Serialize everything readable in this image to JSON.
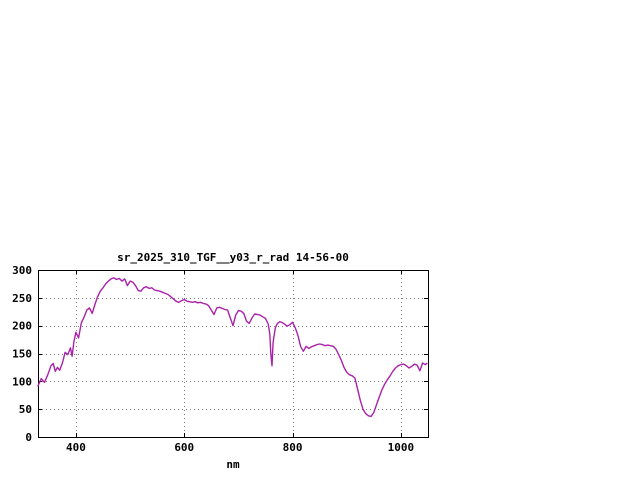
{
  "window": {
    "background_color": "#ffffff"
  },
  "chart_data": {
    "type": "line",
    "title": "sr_2025_310_TGF__y03_r_rad 14-56-00",
    "xlabel": "nm",
    "ylabel": "",
    "xlim": [
      330,
      1050
    ],
    "ylim": [
      0,
      300
    ],
    "x_ticks": [
      400,
      600,
      800,
      1000
    ],
    "y_ticks": [
      0,
      50,
      100,
      150,
      200,
      250,
      300
    ],
    "grid": true,
    "legend_position": "none",
    "line_color": "#aa22aa",
    "series": [
      {
        "name": "sr_2025_310_TGF__y03_r_rad",
        "x": [
          330,
          336,
          342,
          348,
          354,
          358,
          362,
          366,
          370,
          375,
          380,
          385,
          390,
          393,
          396,
          400,
          405,
          410,
          415,
          420,
          425,
          430,
          435,
          440,
          445,
          450,
          455,
          460,
          465,
          470,
          475,
          480,
          485,
          490,
          495,
          500,
          505,
          510,
          515,
          520,
          525,
          530,
          535,
          540,
          545,
          550,
          555,
          560,
          565,
          570,
          575,
          580,
          585,
          590,
          595,
          600,
          605,
          610,
          615,
          620,
          625,
          630,
          635,
          640,
          645,
          650,
          655,
          660,
          665,
          670,
          675,
          680,
          685,
          690,
          695,
          700,
          705,
          710,
          715,
          720,
          725,
          730,
          735,
          740,
          745,
          750,
          755,
          758,
          760,
          762,
          764,
          768,
          772,
          776,
          780,
          785,
          790,
          795,
          800,
          805,
          810,
          815,
          820,
          825,
          830,
          835,
          840,
          845,
          850,
          855,
          860,
          865,
          870,
          875,
          880,
          885,
          890,
          895,
          900,
          905,
          910,
          915,
          920,
          925,
          930,
          935,
          940,
          945,
          950,
          955,
          960,
          965,
          970,
          975,
          980,
          985,
          990,
          995,
          1000,
          1005,
          1010,
          1015,
          1020,
          1025,
          1030,
          1035,
          1040,
          1045,
          1048
        ],
        "y": [
          92,
          105,
          98,
          112,
          128,
          132,
          118,
          125,
          120,
          133,
          152,
          148,
          160,
          145,
          170,
          188,
          178,
          205,
          215,
          228,
          232,
          222,
          238,
          252,
          262,
          268,
          275,
          280,
          284,
          286,
          283,
          285,
          280,
          284,
          272,
          280,
          278,
          272,
          263,
          262,
          268,
          270,
          267,
          268,
          264,
          263,
          262,
          260,
          258,
          256,
          252,
          248,
          244,
          242,
          245,
          247,
          244,
          243,
          242,
          243,
          241,
          242,
          240,
          239,
          236,
          228,
          220,
          232,
          233,
          231,
          229,
          228,
          214,
          200,
          219,
          227,
          226,
          222,
          208,
          204,
          214,
          221,
          220,
          219,
          216,
          213,
          203,
          185,
          148,
          128,
          170,
          196,
          204,
          207,
          206,
          203,
          199,
          202,
          206,
          196,
          182,
          162,
          154,
          163,
          159,
          162,
          164,
          166,
          167,
          166,
          164,
          165,
          164,
          163,
          158,
          148,
          138,
          125,
          116,
          112,
          110,
          106,
          86,
          66,
          50,
          42,
          38,
          37,
          44,
          58,
          72,
          85,
          95,
          103,
          110,
          118,
          124,
          128,
          130,
          131,
          128,
          124,
          127,
          131,
          129,
          119,
          133,
          130,
          132
        ]
      }
    ]
  }
}
